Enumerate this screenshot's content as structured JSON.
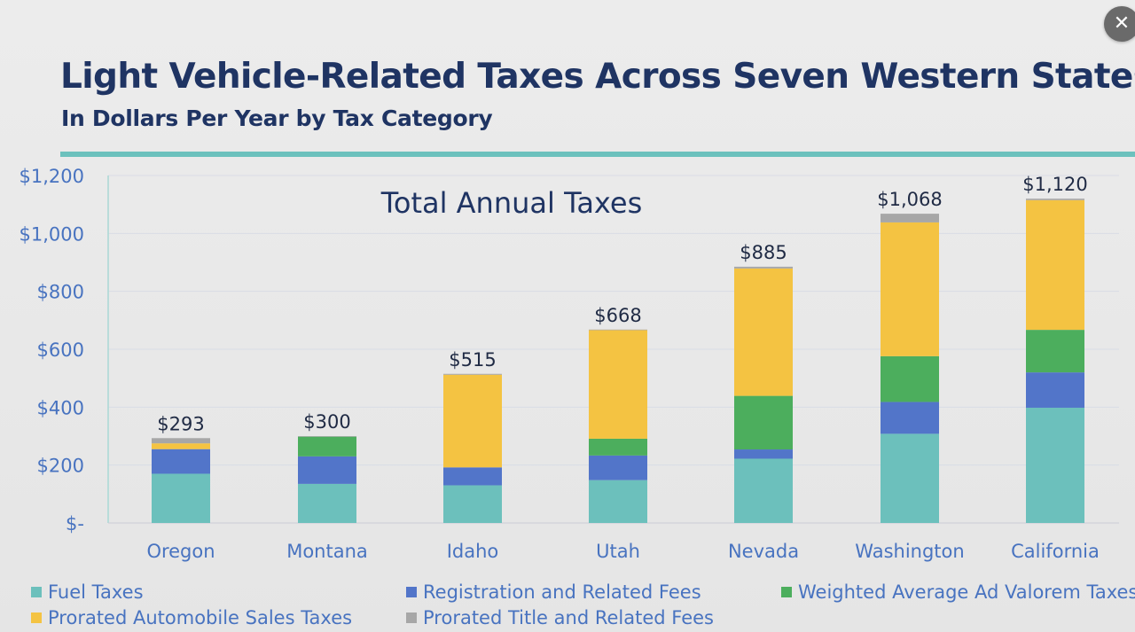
{
  "header": {
    "title": "Light Vehicle-Related Taxes Across Seven Western States",
    "subtitle": "In Dollars Per Year by Tax Category"
  },
  "controls": {
    "close_label": "✕",
    "close_icon": "close-icon"
  },
  "colors": {
    "fuel": "#6cc0bc",
    "registration": "#5275c9",
    "ad_valorem": "#4cae5d",
    "sales": "#f4c342",
    "title_fees": "#a7a7a7",
    "title_text": "#1f3463",
    "axis_text": "#4873c0",
    "rule": "#6cc1bd"
  },
  "chart_data": {
    "type": "bar",
    "stacked": true,
    "title": "Total Annual Taxes",
    "categories": [
      "Oregon",
      "Montana",
      "Idaho",
      "Utah",
      "Nevada",
      "Washington",
      "California"
    ],
    "series": [
      {
        "name": "Fuel Taxes",
        "color": "#6cc0bc",
        "values": [
          170,
          135,
          130,
          148,
          222,
          308,
          398
        ]
      },
      {
        "name": "Registration and Related Fees",
        "color": "#5275c9",
        "values": [
          85,
          95,
          62,
          85,
          32,
          110,
          122
        ]
      },
      {
        "name": "Weighted Average Ad Valorem Taxes",
        "color": "#4cae5d",
        "values": [
          0,
          68,
          0,
          58,
          185,
          158,
          147
        ]
      },
      {
        "name": "Prorated Automobile Sales Taxes",
        "color": "#f4c342",
        "values": [
          20,
          0,
          320,
          375,
          440,
          462,
          448
        ]
      },
      {
        "name": "Prorated Title and Related Fees",
        "color": "#a7a7a7",
        "values": [
          18,
          2,
          3,
          2,
          6,
          30,
          5
        ]
      }
    ],
    "totals": [
      "$293",
      "$300",
      "$515",
      "$668",
      "$885",
      "$1,068",
      "$1,120"
    ],
    "total_values": [
      293,
      300,
      515,
      668,
      885,
      1068,
      1120
    ],
    "ylim": [
      0,
      1200
    ],
    "yticks": [
      0,
      200,
      400,
      600,
      800,
      1000,
      1200
    ],
    "ytick_labels": [
      "$-",
      "$200",
      "$400",
      "$600",
      "$800",
      "$1,000",
      "$1,200"
    ],
    "xlabel": "",
    "ylabel": "",
    "grid": true,
    "legend_position": "bottom"
  }
}
